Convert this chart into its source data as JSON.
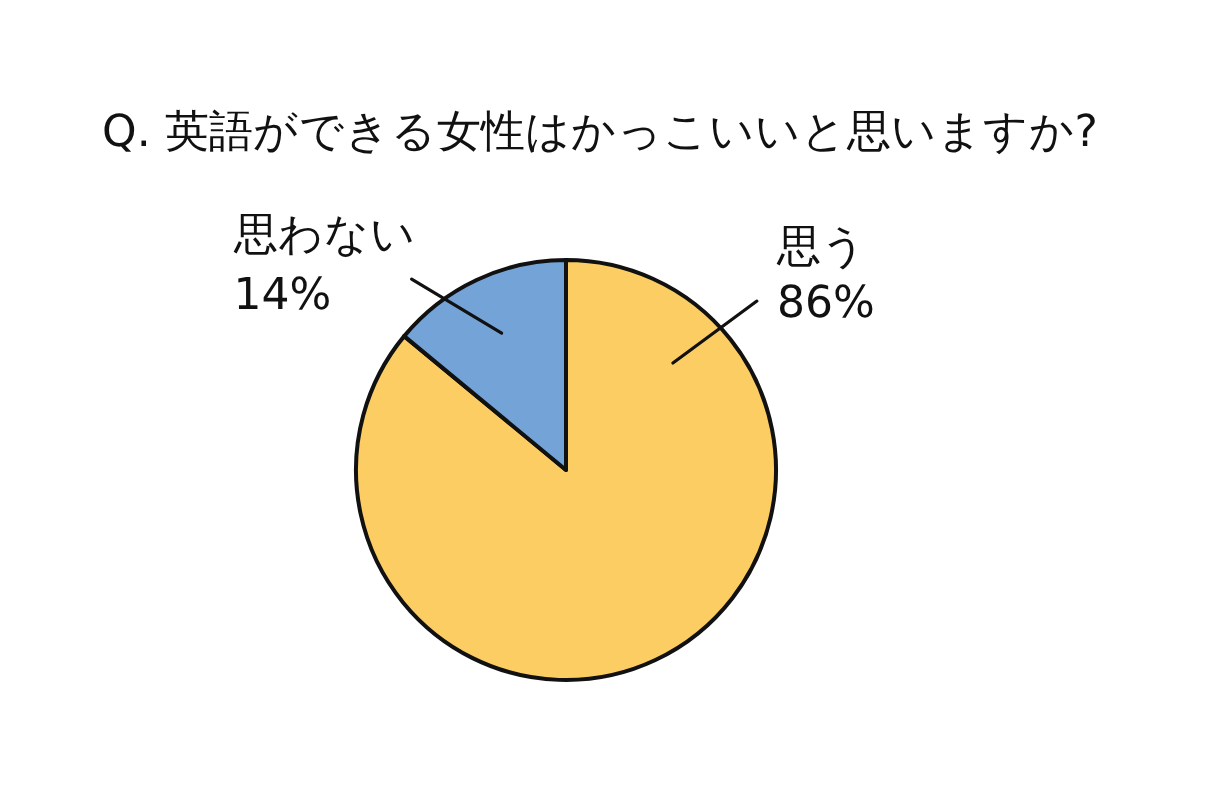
{
  "chart_data": {
    "type": "pie",
    "title": "Q. 英語ができる女性はかっこいいと思いますか?",
    "categories": [
      "思う",
      "思わない"
    ],
    "values": [
      86,
      14
    ],
    "colors": [
      "#fccd63",
      "#73a3d7"
    ],
    "value_labels": [
      "86%",
      "14%"
    ],
    "legend": false
  }
}
